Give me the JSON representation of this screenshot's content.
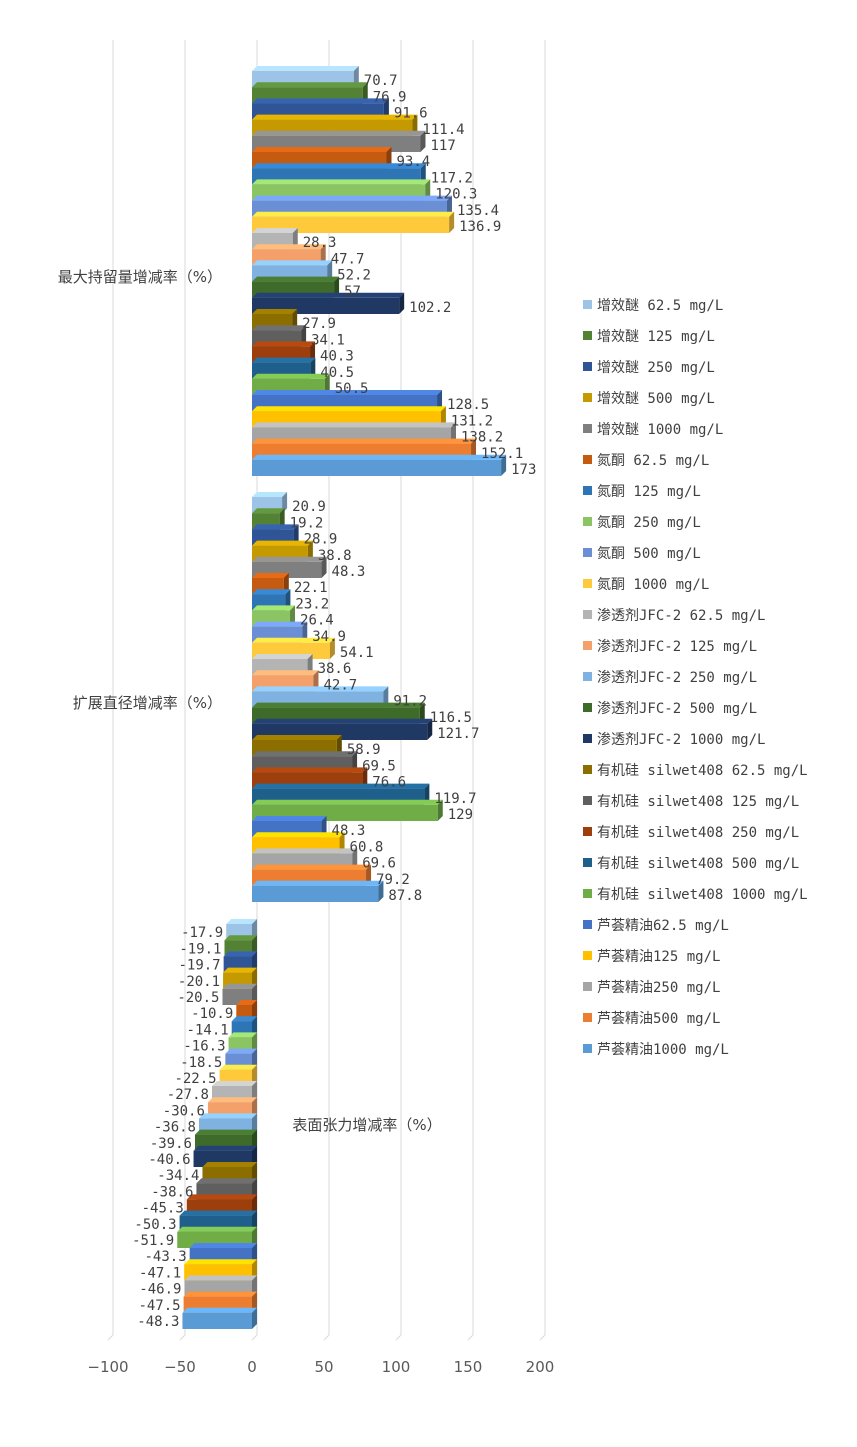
{
  "chart_data": {
    "type": "bar",
    "orientation": "horizontal",
    "style": "3d-clustered",
    "xlim": [
      -100,
      200
    ],
    "xticks": [
      -100,
      -50,
      0,
      50,
      100,
      150,
      200
    ],
    "grid": true,
    "legend_position": "right",
    "categories": [
      "最大持留量增减率（%）",
      "扩展直径增减率（%）",
      "表面张力增减率（%）"
    ],
    "series": [
      {
        "name": "增效醚 62.5 mg/L",
        "color": "#9dc3e6",
        "values": [
          70.7,
          20.9,
          -17.9
        ]
      },
      {
        "name": "增效醚 125 mg/L",
        "color": "#548235",
        "values": [
          76.9,
          19.2,
          -19.1
        ]
      },
      {
        "name": "增效醚 250 mg/L",
        "color": "#2f5597",
        "values": [
          91.6,
          28.9,
          -19.7
        ]
      },
      {
        "name": "增效醚 500 mg/L",
        "color": "#c59a00",
        "values": [
          111.4,
          38.8,
          -20.1
        ]
      },
      {
        "name": "增效醚 1000 mg/L",
        "color": "#7f7f7f",
        "values": [
          117,
          48.3,
          -20.5
        ]
      },
      {
        "name": "氮酮 62.5 mg/L",
        "color": "#c55a11",
        "values": [
          93.4,
          22.1,
          -10.9
        ]
      },
      {
        "name": "氮酮 125 mg/L",
        "color": "#2e75b6",
        "values": [
          117.2,
          23.2,
          -14.1
        ]
      },
      {
        "name": "氮酮 250 mg/L",
        "color": "#8bc563",
        "values": [
          120.3,
          26.4,
          -16.3
        ]
      },
      {
        "name": "氮酮 500 mg/L",
        "color": "#6a8fd4",
        "values": [
          135.4,
          34.9,
          -18.5
        ]
      },
      {
        "name": "氮酮 1000 mg/L",
        "color": "#ffc93c",
        "values": [
          136.9,
          54.1,
          -22.5
        ]
      },
      {
        "name": "渗透剂JFC-2 62.5 mg/L",
        "color": "#b4b4b4",
        "values": [
          28.3,
          38.6,
          -27.8
        ]
      },
      {
        "name": "渗透剂JFC-2 125 mg/L",
        "color": "#f4a06a",
        "values": [
          47.7,
          42.7,
          -30.6
        ]
      },
      {
        "name": "渗透剂JFC-2 250 mg/L",
        "color": "#7fb2e0",
        "values": [
          52.2,
          91.2,
          -36.8
        ]
      },
      {
        "name": "渗透剂JFC-2 500 mg/L",
        "color": "#3f6b2a",
        "values": [
          57,
          116.5,
          -39.6
        ]
      },
      {
        "name": "渗透剂JFC-2 1000 mg/L",
        "color": "#1f3864",
        "values": [
          102.2,
          121.7,
          -40.6
        ]
      },
      {
        "name": "有机硅 silwet408 62.5 mg/L",
        "color": "#8c6d00",
        "values": [
          27.9,
          58.9,
          -34.4
        ]
      },
      {
        "name": "有机硅 silwet408 125 mg/L",
        "color": "#5f5f5f",
        "values": [
          34.1,
          69.5,
          -38.6
        ]
      },
      {
        "name": "有机硅 silwet408 250 mg/L",
        "color": "#9c3f0d",
        "values": [
          40.3,
          76.6,
          -45.3
        ]
      },
      {
        "name": "有机硅 silwet408 500 mg/L",
        "color": "#1f5f8b",
        "values": [
          40.5,
          119.7,
          -50.3
        ]
      },
      {
        "name": "有机硅 silwet408 1000 mg/L",
        "color": "#70ad47",
        "values": [
          50.5,
          129,
          -51.9
        ]
      },
      {
        "name": "芦荟精油62.5 mg/L",
        "color": "#4472c4",
        "values": [
          128.5,
          48.3,
          -43.3
        ]
      },
      {
        "name": "芦荟精油125 mg/L",
        "color": "#ffc000",
        "values": [
          131.2,
          60.8,
          -47.1
        ]
      },
      {
        "name": "芦荟精油250 mg/L",
        "color": "#a5a5a5",
        "values": [
          138.2,
          69.6,
          -46.9
        ]
      },
      {
        "name": "芦荟精油500  mg/L",
        "color": "#ed7d31",
        "values": [
          152.1,
          79.2,
          -47.5
        ]
      },
      {
        "name": "芦荟精油1000 mg/L",
        "color": "#5b9bd5",
        "values": [
          173,
          87.8,
          -48.3
        ]
      }
    ]
  }
}
